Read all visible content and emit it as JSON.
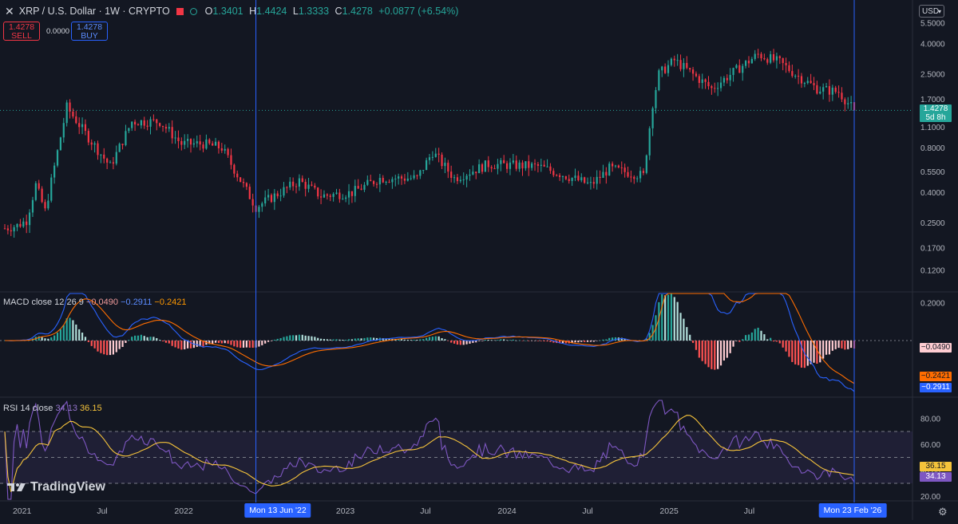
{
  "header": {
    "symbol": "XRP / U.S. Dollar · 1W · CRYPTO",
    "open_label": "O",
    "open": "1.3401",
    "high_label": "H",
    "high": "1.4424",
    "low_label": "L",
    "low": "1.3333",
    "close_label": "C",
    "close": "1.4278",
    "change": "+0.0877 (+6.54%)"
  },
  "trade": {
    "sell_price": "1.4278",
    "sell_label": "SELL",
    "buy_price": "1.4278",
    "buy_label": "BUY",
    "spread": "0.0000"
  },
  "currency": "USD",
  "price_tag": {
    "value": "1.4278",
    "countdown": "5d 8h"
  },
  "macd_legend": {
    "name": "MACD close 12 26 9",
    "hist": "−0.0490",
    "macd": "−0.2911",
    "signal": "−0.2421"
  },
  "macd_tags": {
    "hist": "−0.0490",
    "signal": "−0.2421",
    "macd": "−0.2911"
  },
  "rsi_legend": {
    "name": "RSI 14 close",
    "rsi": "34.13",
    "ma": "36.15"
  },
  "rsi_tags": {
    "ma": "36.15",
    "rsi": "34.13"
  },
  "logo_text": "TradingView",
  "crosshair_labels": {
    "left": "Mon 13 Jun '22",
    "right": "Mon 23 Feb '26"
  },
  "colors": {
    "bg": "#131722",
    "up": "#26a69a",
    "down": "#f23645",
    "macd": "#2962ff",
    "signal": "#ff6d00",
    "rsi": "#7e57c2",
    "rsi_ma": "#f5c33b",
    "cursor": "#2962ff"
  },
  "chart_data": [
    {
      "type": "candlestick",
      "title": "XRP / U.S. Dollar · 1W · CRYPTO",
      "scale": "log",
      "y_ticks": [
        "5.5000",
        "4.0000",
        "2.5000",
        "1.7000",
        "1.1000",
        "0.8000",
        "0.5500",
        "0.4000",
        "0.2500",
        "0.1700",
        "0.1200"
      ],
      "x_ticks": [
        "2021",
        "Jul",
        "2022",
        "2023",
        "Jul",
        "2024",
        "Jul",
        "2025",
        "Jul",
        "Jul"
      ],
      "anchors": [
        [
          "2020-11-23",
          0.23
        ],
        [
          "2020-12-21",
          0.24
        ],
        [
          "2021-01-11",
          0.26
        ],
        [
          "2021-02-01",
          0.45
        ],
        [
          "2021-02-22",
          0.3
        ],
        [
          "2021-04-12",
          1.5
        ],
        [
          "2021-05-24",
          1.0
        ],
        [
          "2021-07-19",
          0.6
        ],
        [
          "2021-09-06",
          1.2
        ],
        [
          "2021-11-08",
          1.2
        ],
        [
          "2021-12-27",
          0.85
        ],
        [
          "2022-02-14",
          0.85
        ],
        [
          "2022-03-28",
          0.8
        ],
        [
          "2022-06-13",
          0.32
        ],
        [
          "2022-09-19",
          0.48
        ],
        [
          "2022-11-07",
          0.38
        ],
        [
          "2023-01-16",
          0.4
        ],
        [
          "2023-03-20",
          0.5
        ],
        [
          "2023-06-12",
          0.5
        ],
        [
          "2023-07-17",
          0.75
        ],
        [
          "2023-09-04",
          0.5
        ],
        [
          "2023-11-20",
          0.62
        ],
        [
          "2024-03-11",
          0.6
        ],
        [
          "2024-05-13",
          0.52
        ],
        [
          "2024-07-08",
          0.45
        ],
        [
          "2024-08-19",
          0.58
        ],
        [
          "2024-11-04",
          0.52
        ],
        [
          "2024-11-25",
          1.6
        ],
        [
          "2024-12-09",
          2.5
        ],
        [
          "2025-01-13",
          3.1
        ],
        [
          "2025-04-07",
          2.0
        ],
        [
          "2025-05-12",
          2.4
        ],
        [
          "2025-07-21",
          3.4
        ],
        [
          "2025-09-08",
          3.0
        ],
        [
          "2025-10-13",
          2.5
        ],
        [
          "2025-12-01",
          2.0
        ],
        [
          "2026-01-19",
          1.9
        ],
        [
          "2026-02-23",
          1.43
        ]
      ],
      "last_price": 1.4278
    },
    {
      "type": "histogram+line",
      "title": "MACD close 12 26 9",
      "y_ticks": [
        "0.2000",
        "-0.2000"
      ],
      "last": {
        "histogram": -0.049,
        "macd": -0.2911,
        "signal": -0.2421
      }
    },
    {
      "type": "line",
      "title": "RSI 14 close",
      "y_ticks": [
        "80.00",
        "60.00",
        "40.00",
        "20.00"
      ],
      "bands": [
        70,
        50,
        30
      ],
      "last": {
        "rsi": 34.13,
        "rsi_ma": 36.15
      }
    }
  ]
}
